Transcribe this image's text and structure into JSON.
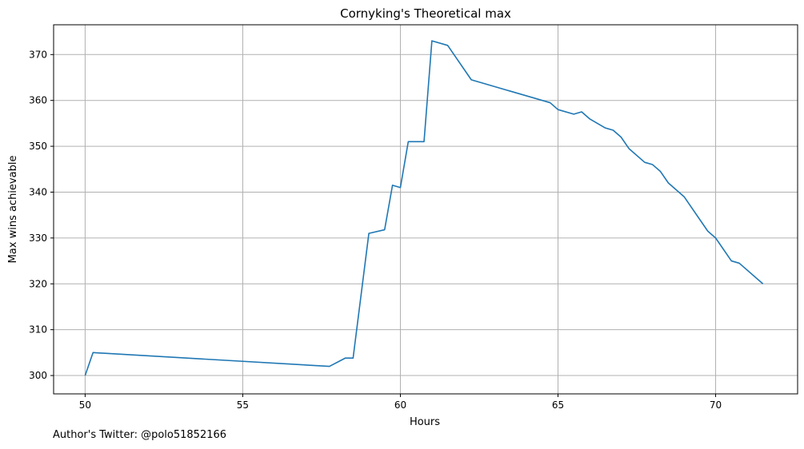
{
  "chart_data": {
    "type": "line",
    "title": "Cornyking's Theoretical max",
    "xlabel": "Hours",
    "ylabel": "Max wins achievable",
    "xlim": [
      49,
      72.6
    ],
    "ylim": [
      296,
      376.5
    ],
    "xticks": [
      50,
      55,
      60,
      65,
      70
    ],
    "yticks": [
      300,
      310,
      320,
      330,
      340,
      350,
      360,
      370
    ],
    "grid": true,
    "line_color": "#1f77b4",
    "series": [
      {
        "x": [
          50.0,
          50.25,
          57.75,
          58.25,
          58.5,
          59.0,
          59.5,
          59.75,
          60.0,
          60.25,
          60.75,
          61.0,
          61.5,
          62.25,
          64.75,
          65.0,
          65.5,
          65.75,
          66.0,
          66.5,
          66.75,
          67.0,
          67.25,
          67.75,
          68.0,
          68.25,
          68.5,
          69.0,
          69.75,
          70.0,
          70.5,
          70.75,
          71.5
        ],
        "y": [
          300.0,
          305.0,
          302.0,
          303.8,
          303.8,
          331.0,
          331.8,
          341.5,
          341.0,
          351.0,
          351.0,
          373.0,
          372.0,
          364.5,
          359.5,
          358.0,
          357.0,
          357.5,
          356.0,
          354.0,
          353.5,
          352.0,
          349.5,
          346.5,
          346.0,
          344.5,
          342.0,
          339.0,
          331.5,
          330.0,
          325.0,
          324.5,
          320.0
        ]
      }
    ]
  },
  "footnote": "Author's Twitter: @polo51852166"
}
